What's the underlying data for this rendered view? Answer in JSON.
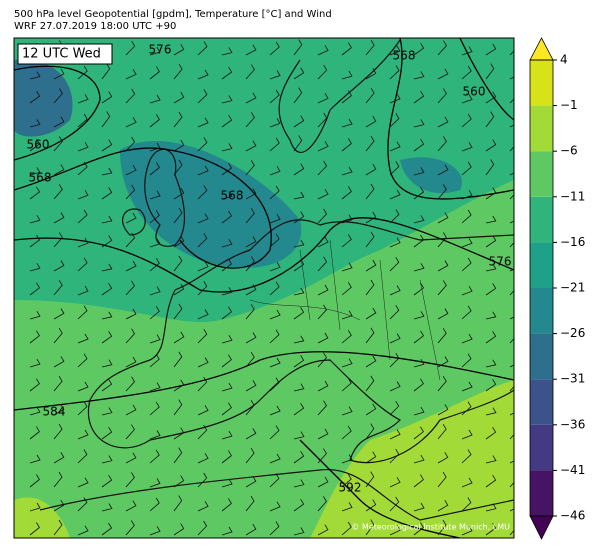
{
  "header": {
    "title": "500 hPa level Geopotential [gpdm], Temperature [°C] and Wind",
    "subtitle": "WRF 27.07.2019 18:00 UTC +90"
  },
  "map": {
    "time_label": "12 UTC Wed",
    "contour_labels": [
      "576",
      "568",
      "560",
      "560",
      "568",
      "568",
      "576",
      "584",
      "592"
    ],
    "credit": "© Meteorological Institute Munich, LMU"
  },
  "colorbar": {
    "ticks": [
      {
        "value": -46,
        "label": "−46"
      },
      {
        "value": -41,
        "label": "−41"
      },
      {
        "value": -36,
        "label": "−36"
      },
      {
        "value": -31,
        "label": "−31"
      },
      {
        "value": -26,
        "label": "−26"
      },
      {
        "value": -21,
        "label": "−21"
      },
      {
        "value": -16,
        "label": "−16"
      },
      {
        "value": -11,
        "label": "−11"
      },
      {
        "value": -6,
        "label": "−6"
      },
      {
        "value": -1,
        "label": "−1"
      },
      4
    ],
    "colors": [
      "#471365",
      "#443a83",
      "#3b528b",
      "#2e6f8e",
      "#23898e",
      "#1fa187",
      "#2fb47c",
      "#5ec962",
      "#a2da37",
      "#d8e219"
    ],
    "under_color": "#440154",
    "over_color": "#fde725"
  }
}
